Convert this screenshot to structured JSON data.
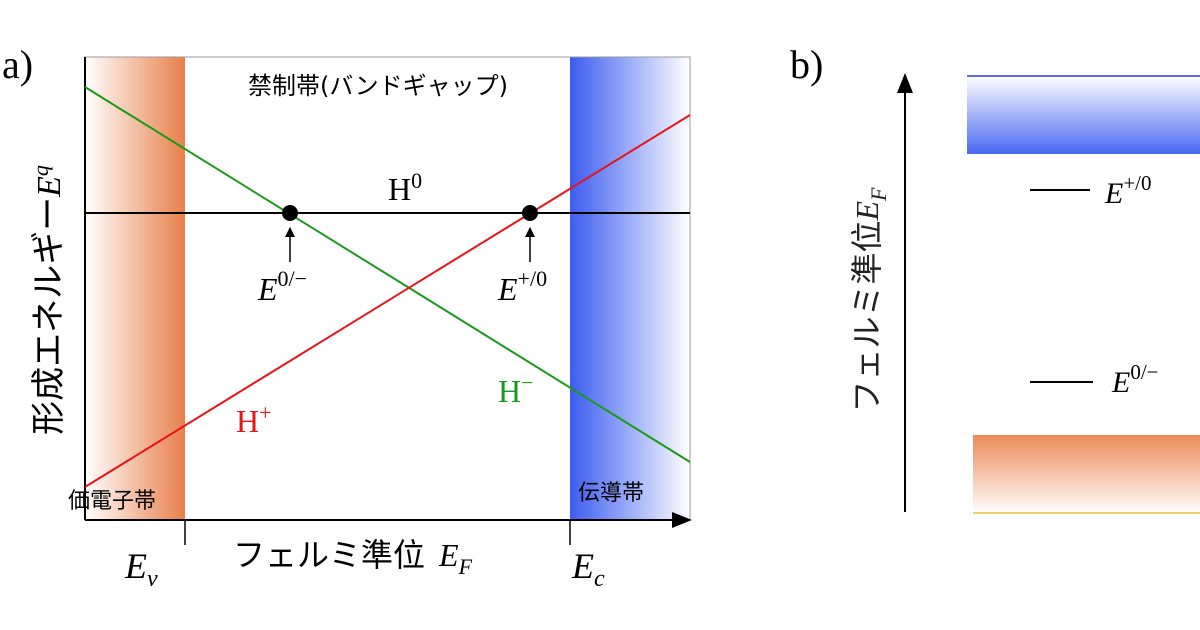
{
  "panel_a": {
    "label": "a)",
    "band_gap": "禁制帯(バンドギャップ)",
    "y_axis": {
      "text": "形成エネルギー",
      "symbol": "E",
      "sup": "q"
    },
    "x_axis": {
      "text": "フェルミ準位",
      "symbol": "E",
      "sub": "F"
    },
    "valence_band": "価電子帯",
    "conduction_band": "伝導帯",
    "ev": {
      "symbol": "E",
      "sub": "v"
    },
    "ec": {
      "symbol": "E",
      "sub": "c"
    },
    "lines": [
      {
        "symbol": "H",
        "sup": "0"
      },
      {
        "symbol": "H",
        "sup": "+"
      },
      {
        "symbol": "H",
        "sup": "−"
      }
    ],
    "levels": [
      {
        "symbol": "E",
        "sup": "0/−"
      },
      {
        "symbol": "E",
        "sup": "+/0"
      }
    ]
  },
  "panel_b": {
    "label": "b)",
    "axis": {
      "text": "フェルミ準位",
      "symbol": "E",
      "sub": "F"
    },
    "levels": [
      {
        "symbol": "E",
        "sup": "+/0"
      },
      {
        "symbol": "E",
        "sup": "0/−"
      }
    ]
  }
}
